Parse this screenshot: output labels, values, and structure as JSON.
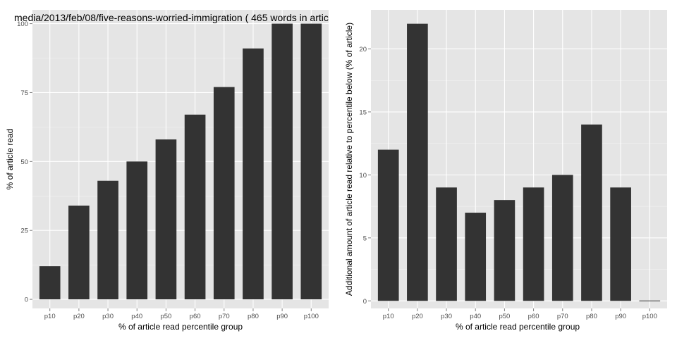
{
  "chart_data": [
    {
      "type": "bar",
      "title": "media/2013/feb/08/five-reasons-worried-immigration ( 465 words in artic",
      "xlabel": "% of article read percentile group",
      "ylabel": "% of article read",
      "categories": [
        "p10",
        "p20",
        "p30",
        "p40",
        "p50",
        "p60",
        "p70",
        "p80",
        "p90",
        "p100"
      ],
      "values": [
        12,
        34,
        43,
        50,
        58,
        67,
        77,
        91,
        100,
        100
      ],
      "ylim": [
        -3.3,
        105
      ],
      "yticks": [
        0,
        25,
        50,
        75,
        100
      ],
      "grid": true,
      "legend": "none",
      "colors": {
        "panel": "#e5e5e5",
        "gridMajor": "#ffffff",
        "gridMinor": "#f2f2f2",
        "bar": "#333333",
        "tickMark": "#7f7f7f"
      }
    },
    {
      "type": "bar",
      "title": "",
      "xlabel": "% of article read percentile group",
      "ylabel": "Additional amount of article read relative to percentile below (% of article)",
      "categories": [
        "p10",
        "p20",
        "p30",
        "p40",
        "p50",
        "p60",
        "p70",
        "p80",
        "p90",
        "p100"
      ],
      "values": [
        12,
        22,
        9,
        7,
        8,
        9,
        10,
        14,
        9,
        0
      ],
      "ylim": [
        -0.6,
        23.1
      ],
      "yticks": [
        0,
        5,
        10,
        15,
        20
      ],
      "grid": true,
      "legend": "none",
      "colors": {
        "panel": "#e5e5e5",
        "gridMajor": "#ffffff",
        "gridMinor": "#f2f2f2",
        "bar": "#333333",
        "tickMark": "#7f7f7f"
      }
    }
  ]
}
